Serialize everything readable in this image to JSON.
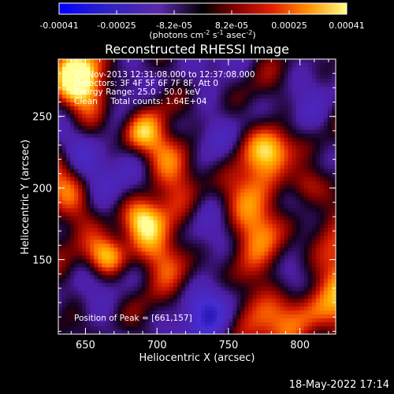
{
  "chart_data": {
    "type": "heatmap",
    "title": "Reconstructed RHESSI Image",
    "xlabel": "Heliocentric X (arcsec)",
    "ylabel": "Heliocentric Y (arcsec)",
    "xlim": [
      631,
      825
    ],
    "ylim": [
      98,
      290
    ],
    "xticks": [
      650,
      700,
      750,
      800
    ],
    "yticks": [
      150,
      200,
      250
    ],
    "colorbar": {
      "ticks": [
        "-0.00041",
        "-0.00025",
        "-8.2e-05",
        "8.2e-05",
        "0.00025",
        "0.00041"
      ],
      "unit_text": "(photons cm",
      "unit_sup1": "-2",
      "unit_mid": " s",
      "unit_sup2": "-1",
      "unit_end": " asec",
      "unit_sup3": "-2",
      "unit_close": ")",
      "range": [
        -0.00041,
        0.00041
      ]
    },
    "annotations": {
      "time_range": "22-Nov-2013 12:31:08.000 to 12:37:08.000",
      "detectors": "Detectors: 3F 4F 5F 6F 7F 8F, Att 0",
      "energy": "Energy Range: 25.0 - 50.0 keV",
      "clean": "Clean     Total counts: 1.64E+04",
      "peak": "Position of Peak = [661,157]"
    },
    "peak_position": [
      661,
      157
    ],
    "grid": false
  },
  "footer": {
    "timestamp": "18-May-2022 17:14"
  },
  "colors": {
    "background": "#000000",
    "foreground": "#ffffff",
    "colormap": [
      "#0a00a0",
      "#4a2ad0",
      "#4a1aa8",
      "#000000",
      "#7a0000",
      "#d21800",
      "#ff6a00",
      "#ffb400",
      "#ffff90"
    ]
  }
}
